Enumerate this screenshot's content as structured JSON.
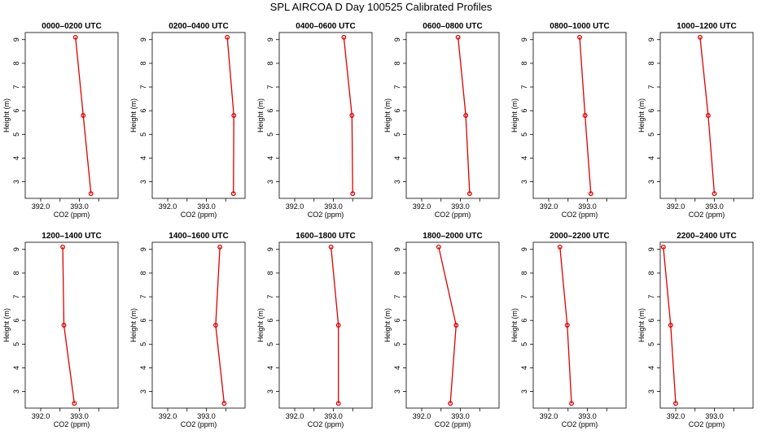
{
  "figure": {
    "title": "SPL AIRCOA D  Day 100525  Calibrated Profiles"
  },
  "colors": {
    "series": "#dd0000",
    "axes": "#000000"
  },
  "chart_data": [
    {
      "type": "line",
      "title": "0000–0200 UTC",
      "xlabel": "CO2 (ppm)",
      "ylabel": "Height (m)",
      "xlim": [
        391.6,
        394.0
      ],
      "ylim": [
        2.3,
        9.3
      ],
      "xticks": [
        392.0,
        392.5,
        393.0,
        393.5
      ],
      "xticklabels": [
        "392.0",
        "",
        "393.0",
        ""
      ],
      "yticks": [
        3,
        4,
        5,
        6,
        7,
        8,
        9
      ],
      "yticklabels": [
        "3",
        "4",
        "5",
        "6",
        "7",
        "8",
        "9"
      ],
      "series": [
        {
          "x": [
            392.9,
            393.1,
            393.3
          ],
          "y": [
            9.1,
            5.8,
            2.5
          ]
        }
      ]
    },
    {
      "type": "line",
      "title": "0200–0400 UTC",
      "xlabel": "CO2 (ppm)",
      "ylabel": "Height (m)",
      "xlim": [
        391.6,
        394.0
      ],
      "ylim": [
        2.3,
        9.3
      ],
      "xticks": [
        392.0,
        392.5,
        393.0,
        393.5
      ],
      "xticklabels": [
        "392.0",
        "",
        "393.0",
        ""
      ],
      "yticks": [
        3,
        4,
        5,
        6,
        7,
        8,
        9
      ],
      "yticklabels": [
        "3",
        "4",
        "5",
        "6",
        "7",
        "8",
        "9"
      ],
      "series": [
        {
          "x": [
            393.54,
            393.71,
            393.7
          ],
          "y": [
            9.1,
            5.8,
            2.5
          ]
        }
      ]
    },
    {
      "type": "line",
      "title": "0400–0600 UTC",
      "xlabel": "CO2 (ppm)",
      "ylabel": "Height (m)",
      "xlim": [
        391.6,
        394.0
      ],
      "ylim": [
        2.3,
        9.3
      ],
      "xticks": [
        392.0,
        392.5,
        393.0,
        393.5
      ],
      "xticklabels": [
        "392.0",
        "",
        "393.0",
        ""
      ],
      "yticks": [
        3,
        4,
        5,
        6,
        7,
        8,
        9
      ],
      "yticklabels": [
        "3",
        "4",
        "5",
        "6",
        "7",
        "8",
        "9"
      ],
      "series": [
        {
          "x": [
            393.27,
            393.48,
            393.5
          ],
          "y": [
            9.1,
            5.8,
            2.5
          ]
        }
      ]
    },
    {
      "type": "line",
      "title": "0600–0800 UTC",
      "xlabel": "CO2 (ppm)",
      "ylabel": "Height (m)",
      "xlim": [
        391.6,
        394.0
      ],
      "ylim": [
        2.3,
        9.3
      ],
      "xticks": [
        392.0,
        392.5,
        393.0,
        393.5
      ],
      "xticklabels": [
        "392.0",
        "",
        "393.0",
        ""
      ],
      "yticks": [
        3,
        4,
        5,
        6,
        7,
        8,
        9
      ],
      "yticklabels": [
        "3",
        "4",
        "5",
        "6",
        "7",
        "8",
        "9"
      ],
      "series": [
        {
          "x": [
            392.94,
            393.14,
            393.24
          ],
          "y": [
            9.1,
            5.8,
            2.5
          ]
        }
      ]
    },
    {
      "type": "line",
      "title": "0800–1000 UTC",
      "xlabel": "CO2 (ppm)",
      "ylabel": "Height (m)",
      "xlim": [
        391.6,
        394.0
      ],
      "ylim": [
        2.3,
        9.3
      ],
      "xticks": [
        392.0,
        392.5,
        393.0,
        393.5
      ],
      "xticklabels": [
        "392.0",
        "",
        "393.0",
        ""
      ],
      "yticks": [
        3,
        4,
        5,
        6,
        7,
        8,
        9
      ],
      "yticklabels": [
        "3",
        "4",
        "5",
        "6",
        "7",
        "8",
        "9"
      ],
      "series": [
        {
          "x": [
            392.8,
            392.94,
            393.09
          ],
          "y": [
            9.1,
            5.8,
            2.5
          ]
        }
      ]
    },
    {
      "type": "line",
      "title": "1000–1200 UTC",
      "xlabel": "CO2 (ppm)",
      "ylabel": "Height (m)",
      "xlim": [
        391.6,
        394.0
      ],
      "ylim": [
        2.3,
        9.3
      ],
      "xticks": [
        392.0,
        392.5,
        393.0,
        393.5
      ],
      "xticklabels": [
        "392.0",
        "",
        "393.0",
        ""
      ],
      "yticks": [
        3,
        4,
        5,
        6,
        7,
        8,
        9
      ],
      "yticklabels": [
        "3",
        "4",
        "5",
        "6",
        "7",
        "8",
        "9"
      ],
      "series": [
        {
          "x": [
            392.63,
            392.84,
            393.0
          ],
          "y": [
            9.1,
            5.8,
            2.5
          ]
        }
      ]
    },
    {
      "type": "line",
      "title": "1200–1400 UTC",
      "xlabel": "CO2 (ppm)",
      "ylabel": "Height (m)",
      "xlim": [
        391.6,
        394.0
      ],
      "ylim": [
        2.3,
        9.3
      ],
      "xticks": [
        392.0,
        392.5,
        393.0,
        393.5
      ],
      "xticklabels": [
        "392.0",
        "",
        "393.0",
        ""
      ],
      "yticks": [
        3,
        4,
        5,
        6,
        7,
        8,
        9
      ],
      "yticklabels": [
        "3",
        "4",
        "5",
        "6",
        "7",
        "8",
        "9"
      ],
      "series": [
        {
          "x": [
            392.57,
            392.6,
            392.87
          ],
          "y": [
            9.1,
            5.8,
            2.5
          ]
        }
      ]
    },
    {
      "type": "line",
      "title": "1400–1600 UTC",
      "xlabel": "CO2 (ppm)",
      "ylabel": "Height (m)",
      "xlim": [
        391.6,
        394.0
      ],
      "ylim": [
        2.3,
        9.3
      ],
      "xticks": [
        392.0,
        392.5,
        393.0,
        393.5
      ],
      "xticklabels": [
        "392.0",
        "",
        "393.0",
        ""
      ],
      "yticks": [
        3,
        4,
        5,
        6,
        7,
        8,
        9
      ],
      "yticklabels": [
        "3",
        "4",
        "5",
        "6",
        "7",
        "8",
        "9"
      ],
      "series": [
        {
          "x": [
            393.35,
            393.24,
            393.46
          ],
          "y": [
            9.1,
            5.8,
            2.5
          ]
        }
      ]
    },
    {
      "type": "line",
      "title": "1600–1800 UTC",
      "xlabel": "CO2 (ppm)",
      "ylabel": "Height (m)",
      "xlim": [
        391.6,
        394.0
      ],
      "ylim": [
        2.3,
        9.3
      ],
      "xticks": [
        392.0,
        392.5,
        393.0,
        393.5
      ],
      "xticklabels": [
        "392.0",
        "",
        "393.0",
        ""
      ],
      "yticks": [
        3,
        4,
        5,
        6,
        7,
        8,
        9
      ],
      "yticklabels": [
        "3",
        "4",
        "5",
        "6",
        "7",
        "8",
        "9"
      ],
      "series": [
        {
          "x": [
            392.94,
            393.13,
            393.13
          ],
          "y": [
            9.1,
            5.8,
            2.5
          ]
        }
      ]
    },
    {
      "type": "line",
      "title": "1800–2000 UTC",
      "xlabel": "CO2 (ppm)",
      "ylabel": "Height (m)",
      "xlim": [
        391.6,
        394.0
      ],
      "ylim": [
        2.3,
        9.3
      ],
      "xticks": [
        392.0,
        392.5,
        393.0,
        393.5
      ],
      "xticklabels": [
        "392.0",
        "",
        "393.0",
        ""
      ],
      "yticks": [
        3,
        4,
        5,
        6,
        7,
        8,
        9
      ],
      "yticklabels": [
        "3",
        "4",
        "5",
        "6",
        "7",
        "8",
        "9"
      ],
      "series": [
        {
          "x": [
            392.44,
            392.89,
            392.74
          ],
          "y": [
            9.1,
            5.8,
            2.5
          ]
        }
      ]
    },
    {
      "type": "line",
      "title": "2000–2200 UTC",
      "xlabel": "CO2 (ppm)",
      "ylabel": "Height (m)",
      "xlim": [
        391.6,
        394.0
      ],
      "ylim": [
        2.3,
        9.3
      ],
      "xticks": [
        392.0,
        392.5,
        393.0,
        393.5
      ],
      "xticklabels": [
        "392.0",
        "",
        "393.0",
        ""
      ],
      "yticks": [
        3,
        4,
        5,
        6,
        7,
        8,
        9
      ],
      "yticklabels": [
        "3",
        "4",
        "5",
        "6",
        "7",
        "8",
        "9"
      ],
      "series": [
        {
          "x": [
            392.29,
            392.48,
            392.59
          ],
          "y": [
            9.1,
            5.8,
            2.5
          ]
        }
      ]
    },
    {
      "type": "line",
      "title": "2200–2400 UTC",
      "xlabel": "CO2 (ppm)",
      "ylabel": "Height (m)",
      "xlim": [
        391.6,
        394.0
      ],
      "ylim": [
        2.3,
        9.3
      ],
      "xticks": [
        392.0,
        392.5,
        393.0,
        393.5
      ],
      "xticklabels": [
        "392.0",
        "",
        "393.0",
        ""
      ],
      "yticks": [
        3,
        4,
        5,
        6,
        7,
        8,
        9
      ],
      "yticklabels": [
        "3",
        "4",
        "5",
        "6",
        "7",
        "8",
        "9"
      ],
      "series": [
        {
          "x": [
            391.68,
            391.87,
            392.0
          ],
          "y": [
            9.1,
            5.8,
            2.5
          ]
        }
      ]
    }
  ]
}
